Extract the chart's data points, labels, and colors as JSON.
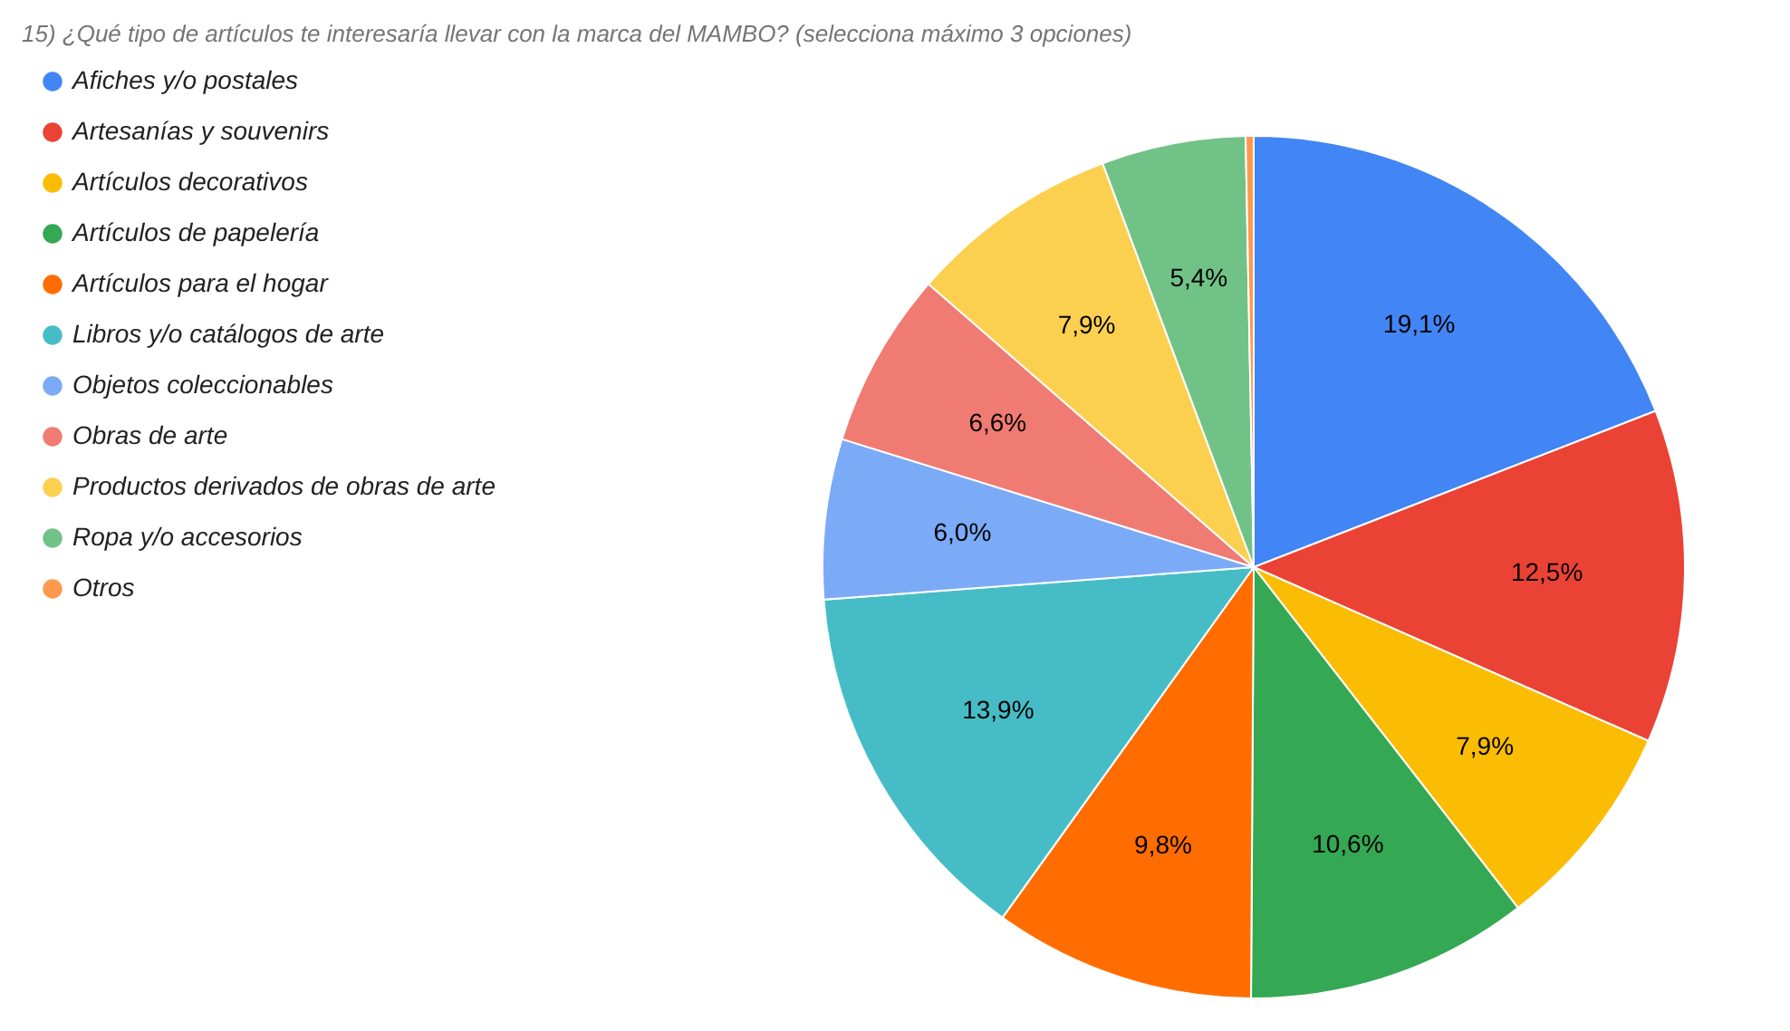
{
  "chart_data": {
    "type": "pie",
    "title": "15) ¿Qué tipo de artículos te interesaría llevar con la marca del MAMBO? (selecciona máximo 3 opciones)",
    "categories": [
      "Afiches y/o postales",
      "Artesanías y souvenirs",
      "Artículos decorativos",
      "Artículos de papelería",
      "Artículos para el hogar",
      "Libros y/o catálogos de arte",
      "Objetos coleccionables",
      "Obras de arte",
      "Productos derivados de obras de arte",
      "Ropa y/o accesorios",
      "Otros"
    ],
    "values": [
      19.1,
      12.5,
      7.9,
      10.6,
      9.8,
      13.9,
      6.0,
      6.6,
      7.9,
      5.4,
      0.3
    ],
    "value_labels": [
      "19,1%",
      "12,5%",
      "7,9%",
      "10,6%",
      "9,8%",
      "13,9%",
      "6,0%",
      "6,6%",
      "7,9%",
      "5,4%",
      null
    ],
    "colors": [
      "#4285f4",
      "#ea4335",
      "#fbbc04",
      "#34a853",
      "#ff6d01",
      "#46bdc6",
      "#7baaf7",
      "#f07b72",
      "#fcd04f",
      "#71c287",
      "#ff994d"
    ],
    "legend": "top left"
  }
}
